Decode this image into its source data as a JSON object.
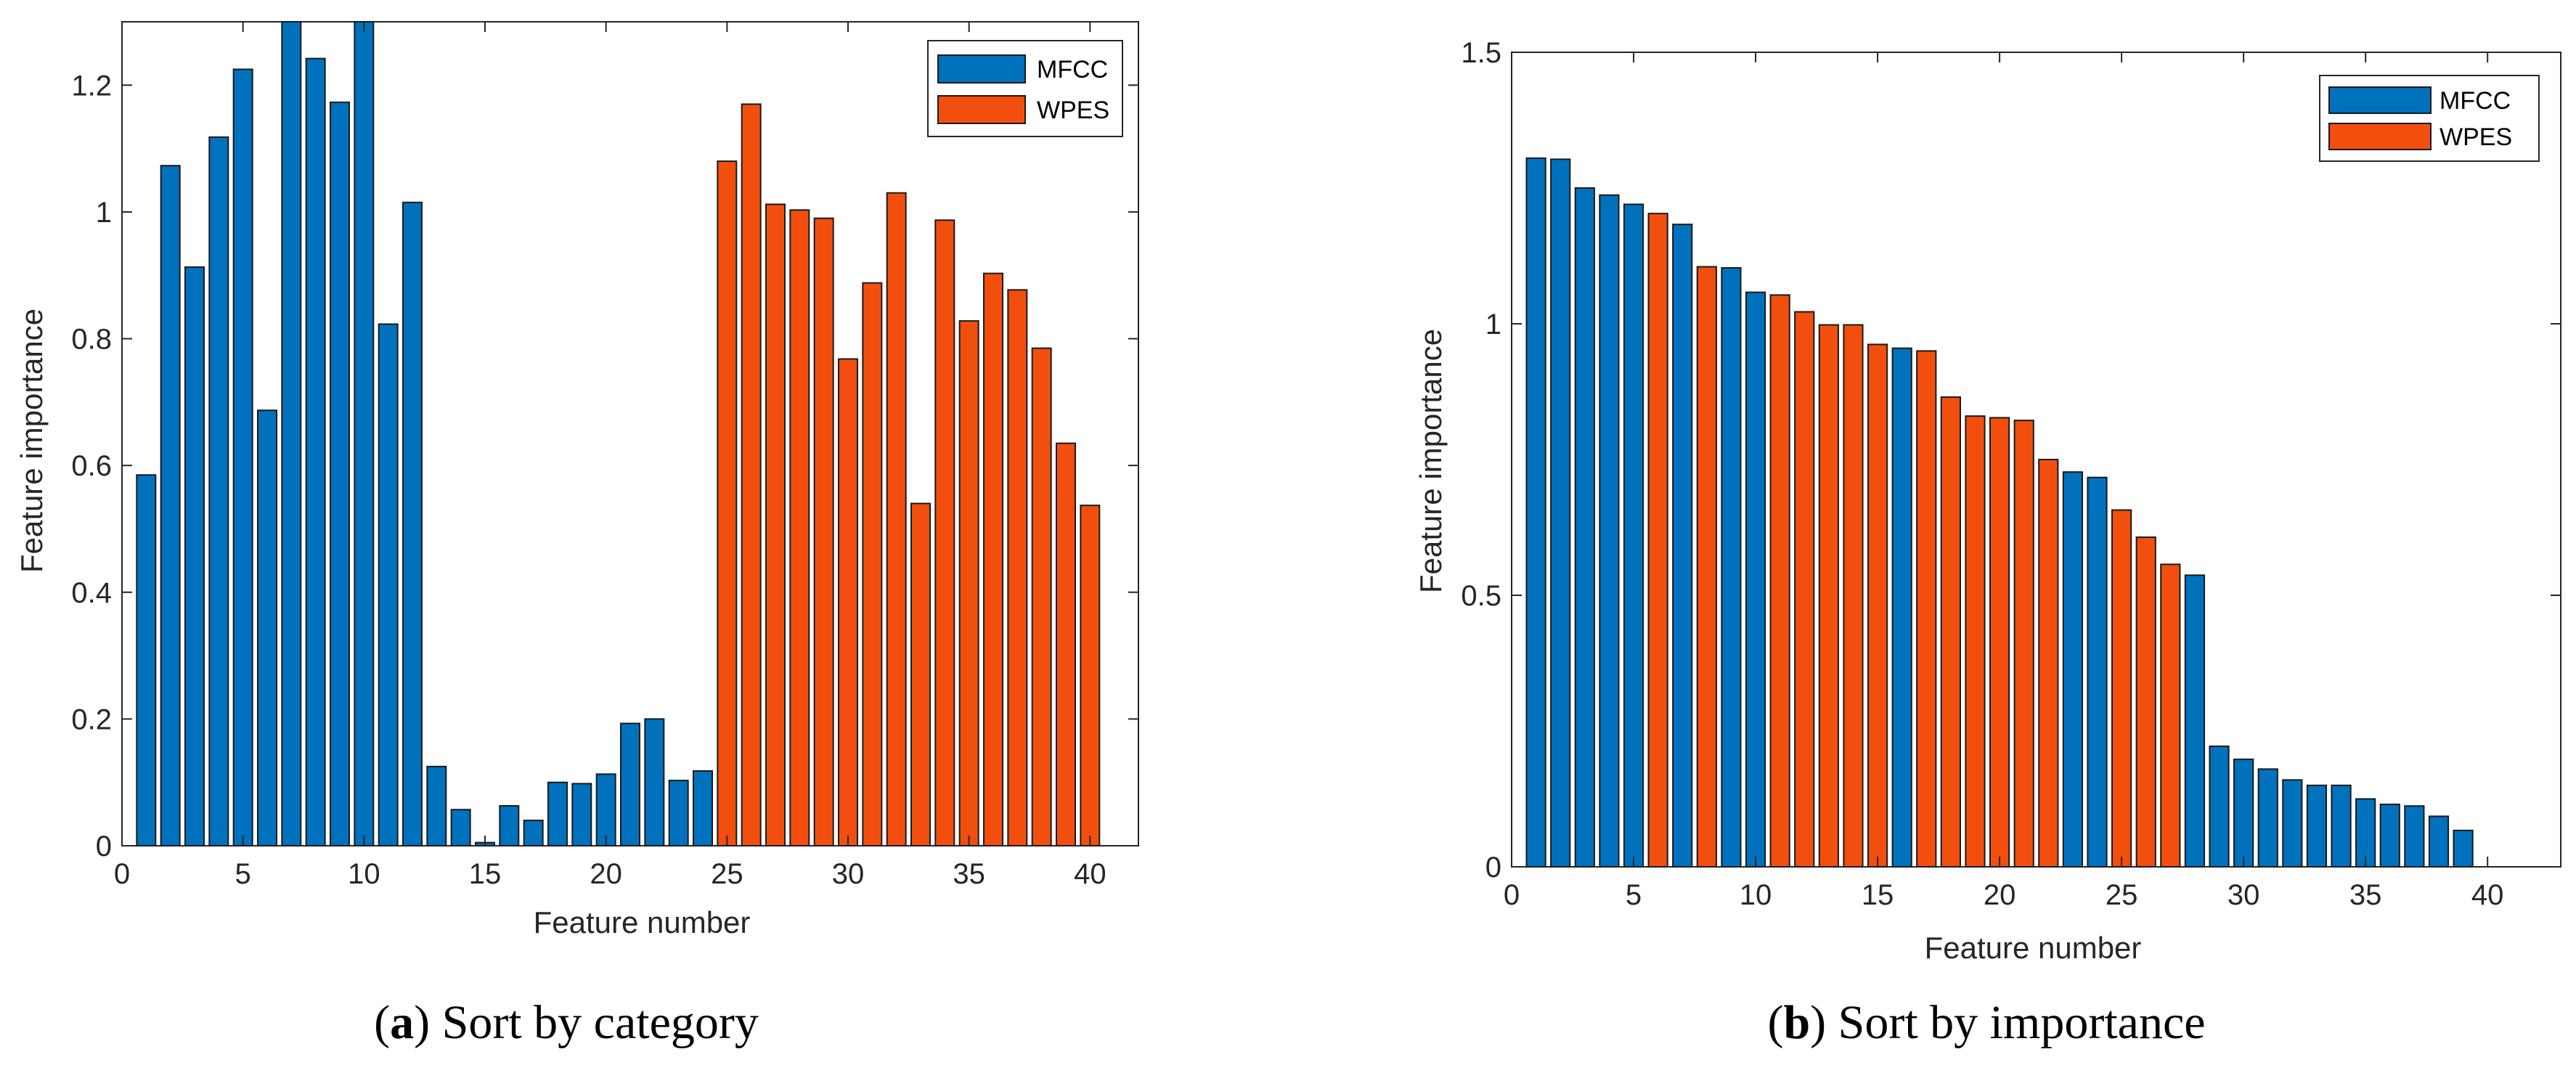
{
  "colors": {
    "mfcc": "#0072BD",
    "wpes": "#F24F0F"
  },
  "chart_data": [
    {
      "type": "bar",
      "panel": "a",
      "caption_letter": "a",
      "caption_open": "(",
      "caption_close": ")",
      "caption_text": " Sort by category",
      "xlabel": "Feature number",
      "ylabel": "Feature importance",
      "xlim": [
        0,
        42
      ],
      "ylim": [
        0,
        1.3
      ],
      "xticks": [
        0,
        5,
        10,
        15,
        20,
        25,
        30,
        35,
        40
      ],
      "yticks": [
        0,
        0.2,
        0.4,
        0.6,
        0.8,
        1,
        1.2
      ],
      "ytick_labels": [
        "0",
        "0.2",
        "0.4",
        "0.6",
        "0.8",
        "1",
        "1.2"
      ],
      "legend": [
        {
          "label": "MFCC",
          "series": "mfcc"
        },
        {
          "label": "WPES",
          "series": "wpes"
        }
      ],
      "x": [
        1,
        2,
        3,
        4,
        5,
        6,
        7,
        8,
        9,
        10,
        11,
        12,
        13,
        14,
        15,
        16,
        17,
        18,
        19,
        20,
        21,
        22,
        23,
        24,
        25,
        26,
        27,
        28,
        29,
        30,
        31,
        32,
        33,
        34,
        35,
        36,
        37,
        38,
        39,
        40
      ],
      "values": [
        0.585,
        1.073,
        0.913,
        1.118,
        1.225,
        0.687,
        1.3,
        1.242,
        1.173,
        1.3,
        0.823,
        1.015,
        0.125,
        0.057,
        0.005,
        0.063,
        0.04,
        0.1,
        0.098,
        0.113,
        0.193,
        0.2,
        0.103,
        0.118,
        1.08,
        1.17,
        1.012,
        1.003,
        0.99,
        0.768,
        0.888,
        1.03,
        0.54,
        0.987,
        0.828,
        0.903,
        0.877,
        0.785,
        0.635,
        0.537
      ],
      "series_of_bar": [
        "mfcc",
        "mfcc",
        "mfcc",
        "mfcc",
        "mfcc",
        "mfcc",
        "mfcc",
        "mfcc",
        "mfcc",
        "mfcc",
        "mfcc",
        "mfcc",
        "mfcc",
        "mfcc",
        "mfcc",
        "mfcc",
        "mfcc",
        "mfcc",
        "mfcc",
        "mfcc",
        "mfcc",
        "mfcc",
        "mfcc",
        "mfcc",
        "wpes",
        "wpes",
        "wpes",
        "wpes",
        "wpes",
        "wpes",
        "wpes",
        "wpes",
        "wpes",
        "wpes",
        "wpes",
        "wpes",
        "wpes",
        "wpes",
        "wpes",
        "wpes"
      ]
    },
    {
      "type": "bar",
      "panel": "b",
      "caption_letter": "b",
      "caption_open": "(",
      "caption_close": ")",
      "caption_text": " Sort by importance",
      "xlabel": "Feature number",
      "ylabel": "Feature importance",
      "xlim": [
        0,
        43
      ],
      "ylim": [
        0,
        1.5
      ],
      "xticks": [
        0,
        5,
        10,
        15,
        20,
        25,
        30,
        35,
        40
      ],
      "yticks": [
        0,
        0.5,
        1,
        1.5
      ],
      "ytick_labels": [
        "0",
        "0.5",
        "1",
        "1.5"
      ],
      "legend": [
        {
          "label": "MFCC",
          "series": "mfcc"
        },
        {
          "label": "WPES",
          "series": "wpes"
        }
      ],
      "x": [
        1,
        2,
        3,
        4,
        5,
        6,
        7,
        8,
        9,
        10,
        11,
        12,
        13,
        14,
        15,
        16,
        17,
        18,
        19,
        20,
        21,
        22,
        23,
        24,
        25,
        26,
        27,
        28,
        29,
        30,
        31,
        32,
        33,
        34,
        35,
        36,
        37,
        38,
        39
      ],
      "values": [
        1.305,
        1.303,
        1.25,
        1.237,
        1.22,
        1.203,
        1.183,
        1.105,
        1.103,
        1.058,
        1.053,
        1.022,
        0.998,
        0.998,
        0.962,
        0.955,
        0.95,
        0.865,
        0.83,
        0.827,
        0.822,
        0.75,
        0.727,
        0.717,
        0.657,
        0.607,
        0.557,
        0.537,
        0.222,
        0.198,
        0.18,
        0.16,
        0.15,
        0.15,
        0.125,
        0.115,
        0.112,
        0.093,
        0.067
      ],
      "series_of_bar": [
        "mfcc",
        "mfcc",
        "mfcc",
        "mfcc",
        "mfcc",
        "wpes",
        "mfcc",
        "wpes",
        "mfcc",
        "mfcc",
        "wpes",
        "wpes",
        "wpes",
        "wpes",
        "wpes",
        "mfcc",
        "wpes",
        "wpes",
        "wpes",
        "wpes",
        "wpes",
        "wpes",
        "mfcc",
        "mfcc",
        "wpes",
        "wpes",
        "wpes",
        "mfcc",
        "mfcc",
        "mfcc",
        "mfcc",
        "mfcc",
        "mfcc",
        "mfcc",
        "mfcc",
        "mfcc",
        "mfcc",
        "mfcc",
        "mfcc"
      ]
    }
  ]
}
